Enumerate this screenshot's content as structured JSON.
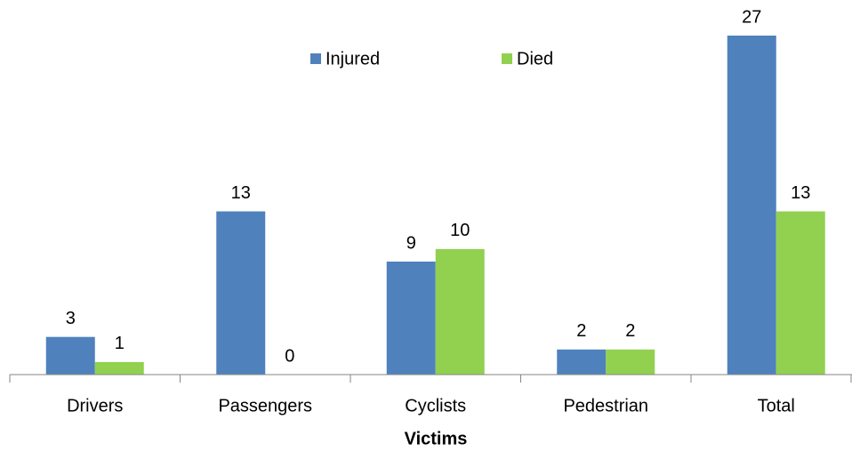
{
  "chart_data": {
    "type": "bar",
    "x_label": "Victims",
    "categories": [
      "Drivers",
      "Passengers",
      "Cyclists",
      "Pedestrian",
      "Total"
    ],
    "series": [
      {
        "name": "Injured",
        "color": "#4f81bd",
        "values": [
          3,
          13,
          9,
          2,
          27
        ]
      },
      {
        "name": "Died",
        "color": "#92d050",
        "values": [
          1,
          0,
          10,
          2,
          13
        ]
      }
    ],
    "ylim": [
      0,
      27
    ],
    "legend": "top"
  }
}
